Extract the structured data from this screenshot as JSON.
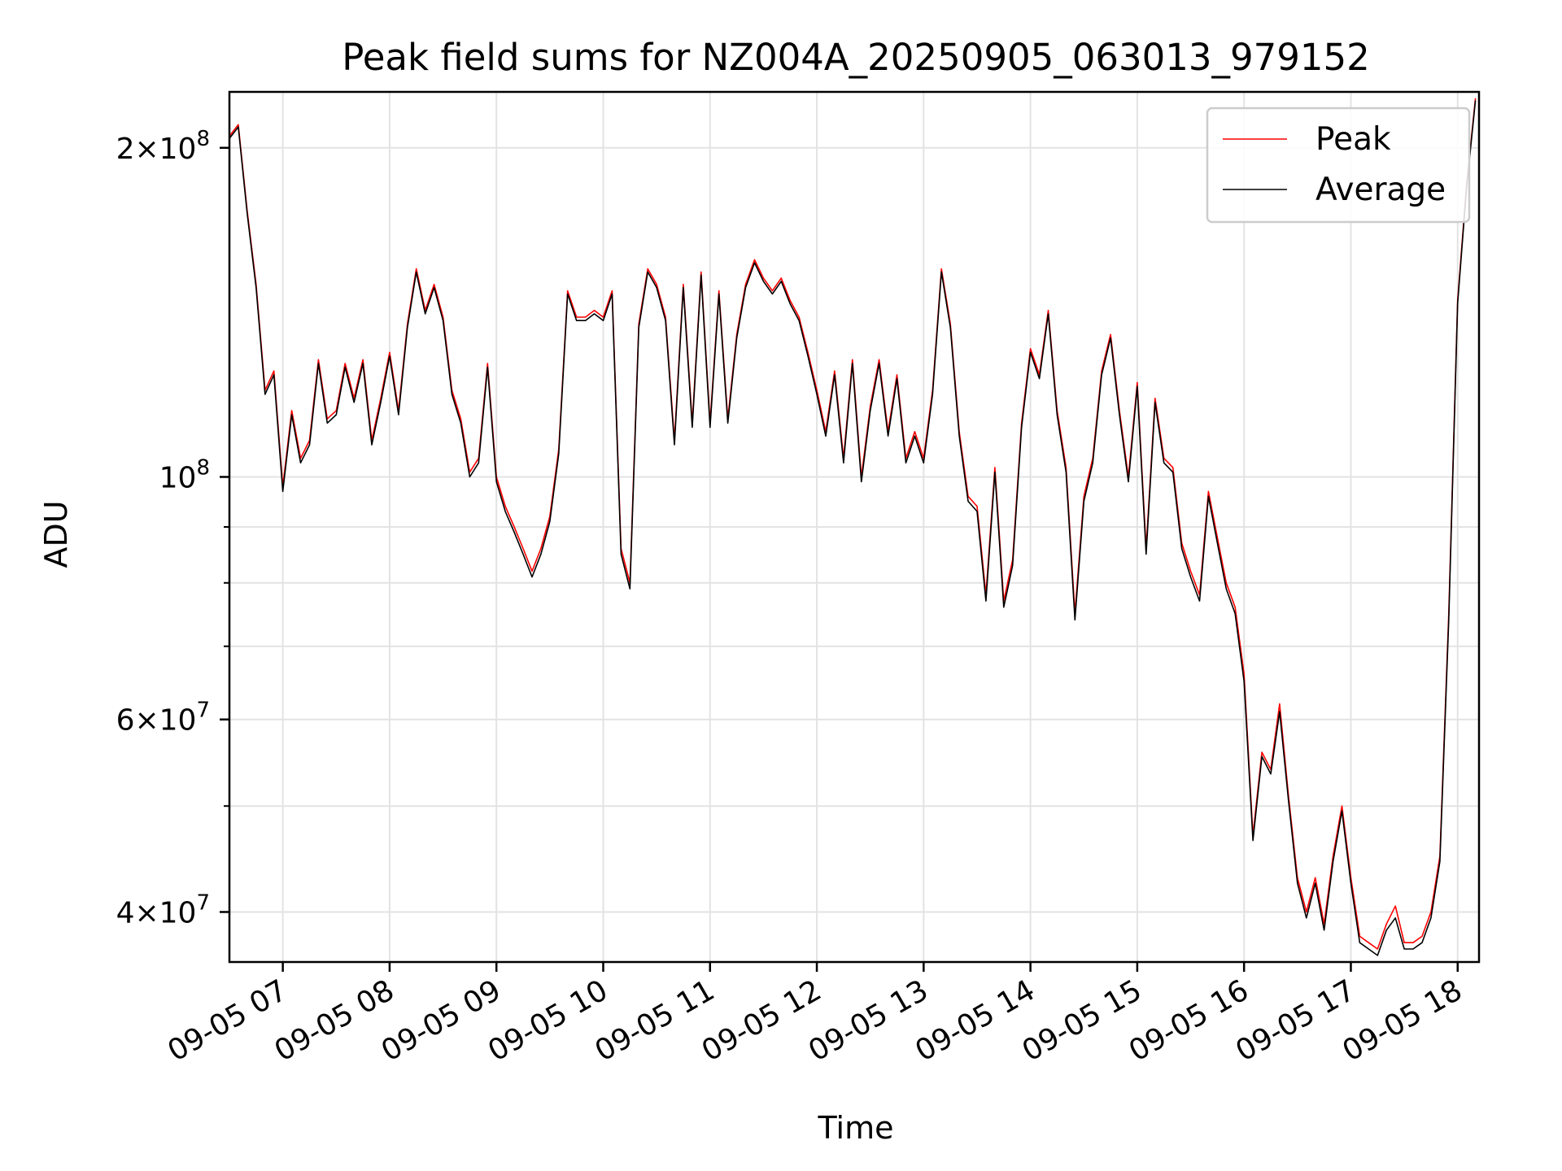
{
  "chart_data": {
    "type": "line",
    "title": "Peak field sums for NZ004A_20250905_063013_979152",
    "xlabel": "Time",
    "ylabel": "ADU",
    "yscale": "log",
    "ylim": [
      36000000,
      225000000
    ],
    "xlim": [
      "09-05 06:30",
      "09-05 18:12"
    ],
    "grid": true,
    "legend_position": "top-right",
    "x_ticks": [
      "09-05 07",
      "09-05 08",
      "09-05 09",
      "09-05 10",
      "09-05 11",
      "09-05 12",
      "09-05 13",
      "09-05 14",
      "09-05 15",
      "09-05 16",
      "09-05 17",
      "09-05 18"
    ],
    "y_ticks_major": [
      {
        "value": 200000000,
        "mantissa": "2",
        "exponent": "8"
      },
      {
        "value": 100000000,
        "mantissa": "",
        "exponent": "8"
      },
      {
        "value": 60000000,
        "mantissa": "6",
        "exponent": "7"
      },
      {
        "value": 40000000,
        "mantissa": "4",
        "exponent": "7"
      }
    ],
    "y_ticks_minor": [
      90000000,
      80000000,
      70000000,
      50000000
    ],
    "x": [
      "09-05 06:30",
      "09-05 06:35",
      "09-05 06:40",
      "09-05 06:45",
      "09-05 06:50",
      "09-05 06:55",
      "09-05 07:00",
      "09-05 07:05",
      "09-05 07:10",
      "09-05 07:15",
      "09-05 07:20",
      "09-05 07:25",
      "09-05 07:30",
      "09-05 07:35",
      "09-05 07:40",
      "09-05 07:45",
      "09-05 07:50",
      "09-05 07:55",
      "09-05 08:00",
      "09-05 08:05",
      "09-05 08:10",
      "09-05 08:15",
      "09-05 08:20",
      "09-05 08:25",
      "09-05 08:30",
      "09-05 08:35",
      "09-05 08:40",
      "09-05 08:45",
      "09-05 08:50",
      "09-05 08:55",
      "09-05 09:00",
      "09-05 09:05",
      "09-05 09:10",
      "09-05 09:15",
      "09-05 09:20",
      "09-05 09:25",
      "09-05 09:30",
      "09-05 09:35",
      "09-05 09:40",
      "09-05 09:45",
      "09-05 09:50",
      "09-05 09:55",
      "09-05 10:00",
      "09-05 10:05",
      "09-05 10:10",
      "09-05 10:15",
      "09-05 10:20",
      "09-05 10:25",
      "09-05 10:30",
      "09-05 10:35",
      "09-05 10:40",
      "09-05 10:45",
      "09-05 10:50",
      "09-05 10:55",
      "09-05 11:00",
      "09-05 11:05",
      "09-05 11:10",
      "09-05 11:15",
      "09-05 11:20",
      "09-05 11:25",
      "09-05 11:30",
      "09-05 11:35",
      "09-05 11:40",
      "09-05 11:45",
      "09-05 11:50",
      "09-05 11:55",
      "09-05 12:00",
      "09-05 12:05",
      "09-05 12:10",
      "09-05 12:15",
      "09-05 12:20",
      "09-05 12:25",
      "09-05 12:30",
      "09-05 12:35",
      "09-05 12:40",
      "09-05 12:45",
      "09-05 12:50",
      "09-05 12:55",
      "09-05 13:00",
      "09-05 13:05",
      "09-05 13:10",
      "09-05 13:15",
      "09-05 13:20",
      "09-05 13:25",
      "09-05 13:30",
      "09-05 13:35",
      "09-05 13:40",
      "09-05 13:45",
      "09-05 13:50",
      "09-05 13:55",
      "09-05 14:00",
      "09-05 14:05",
      "09-05 14:10",
      "09-05 14:15",
      "09-05 14:20",
      "09-05 14:25",
      "09-05 14:30",
      "09-05 14:35",
      "09-05 14:40",
      "09-05 14:45",
      "09-05 14:50",
      "09-05 14:55",
      "09-05 15:00",
      "09-05 15:05",
      "09-05 15:10",
      "09-05 15:15",
      "09-05 15:20",
      "09-05 15:25",
      "09-05 15:30",
      "09-05 15:35",
      "09-05 15:40",
      "09-05 15:45",
      "09-05 15:50",
      "09-05 15:55",
      "09-05 16:00",
      "09-05 16:05",
      "09-05 16:10",
      "09-05 16:15",
      "09-05 16:20",
      "09-05 16:25",
      "09-05 16:30",
      "09-05 16:35",
      "09-05 16:40",
      "09-05 16:45",
      "09-05 16:50",
      "09-05 16:55",
      "09-05 17:00",
      "09-05 17:05",
      "09-05 17:10",
      "09-05 17:15",
      "09-05 17:20",
      "09-05 17:25",
      "09-05 17:30",
      "09-05 17:35",
      "09-05 17:40",
      "09-05 17:45",
      "09-05 17:50",
      "09-05 17:55",
      "09-05 18:00",
      "09-05 18:05",
      "09-05 18:10"
    ],
    "series": [
      {
        "name": "Peak",
        "color": "#ff0000",
        "values": [
          205000000,
          210000000,
          175000000,
          150000000,
          120000000,
          125000000,
          98000000,
          115000000,
          104000000,
          108000000,
          128000000,
          113000000,
          115000000,
          127000000,
          118000000,
          128000000,
          108000000,
          118000000,
          130000000,
          115000000,
          138000000,
          155000000,
          142000000,
          150000000,
          140000000,
          120000000,
          113000000,
          101000000,
          104000000,
          127000000,
          100000000,
          94000000,
          90000000,
          86000000,
          82000000,
          86000000,
          92000000,
          106000000,
          148000000,
          140000000,
          140000000,
          142000000,
          140000000,
          148000000,
          86000000,
          80000000,
          138000000,
          155000000,
          150000000,
          140000000,
          108000000,
          150000000,
          112000000,
          154000000,
          112000000,
          148000000,
          113000000,
          135000000,
          150000000,
          158000000,
          152000000,
          148000000,
          152000000,
          145000000,
          140000000,
          130000000,
          120000000,
          110000000,
          125000000,
          104000000,
          128000000,
          100000000,
          116000000,
          128000000,
          110000000,
          124000000,
          104000000,
          110000000,
          104000000,
          120000000,
          155000000,
          138000000,
          110000000,
          96000000,
          94000000,
          78000000,
          102000000,
          77000000,
          84000000,
          112000000,
          131000000,
          124000000,
          142000000,
          115000000,
          102000000,
          75000000,
          96000000,
          104000000,
          125000000,
          135000000,
          115000000,
          100000000,
          122000000,
          86000000,
          118000000,
          104000000,
          102000000,
          87000000,
          82000000,
          78000000,
          97000000,
          88000000,
          80000000,
          76000000,
          66000000,
          47000000,
          56000000,
          54000000,
          62000000,
          51000000,
          43000000,
          40000000,
          43000000,
          39000000,
          45000000,
          50000000,
          43000000,
          38000000,
          37500000,
          37000000,
          39000000,
          40500000,
          37500000,
          37500000,
          38000000,
          40000000,
          45000000,
          75000000,
          145000000,
          185000000,
          222000000
        ]
      },
      {
        "name": "Average",
        "color": "#000000",
        "values": [
          204000000,
          209000000,
          174000000,
          149000000,
          119000000,
          124000000,
          97000000,
          114000000,
          103000000,
          107000000,
          127000000,
          112000000,
          114000000,
          126000000,
          117000000,
          127000000,
          107000000,
          117000000,
          129000000,
          114000000,
          137000000,
          154000000,
          141000000,
          149000000,
          139000000,
          119000000,
          112000000,
          100000000,
          103000000,
          126000000,
          99000000,
          93000000,
          89000000,
          85000000,
          81000000,
          85000000,
          91000000,
          105000000,
          147000000,
          139000000,
          139000000,
          141000000,
          139000000,
          147000000,
          85000000,
          79000000,
          137000000,
          154000000,
          149000000,
          139000000,
          107000000,
          149000000,
          111000000,
          153000000,
          111000000,
          147000000,
          112000000,
          134000000,
          149000000,
          157000000,
          151000000,
          147000000,
          151000000,
          144000000,
          139000000,
          129000000,
          119000000,
          109000000,
          124000000,
          103000000,
          127000000,
          99000000,
          115000000,
          127000000,
          109000000,
          123000000,
          103000000,
          109000000,
          103000000,
          119000000,
          154000000,
          137000000,
          109000000,
          95000000,
          93000000,
          77000000,
          101000000,
          76000000,
          83000000,
          111000000,
          130000000,
          123000000,
          141000000,
          114000000,
          101000000,
          74000000,
          95000000,
          103000000,
          124000000,
          134000000,
          114000000,
          99000000,
          121000000,
          85000000,
          117000000,
          103000000,
          101000000,
          86000000,
          81000000,
          77000000,
          96000000,
          87000000,
          79000000,
          75000000,
          65000000,
          46500000,
          55500000,
          53500000,
          61000000,
          50500000,
          42500000,
          39500000,
          42500000,
          38500000,
          44500000,
          49500000,
          42500000,
          37500000,
          37000000,
          36500000,
          38500000,
          39500000,
          37000000,
          37000000,
          37500000,
          39500000,
          44500000,
          74000000,
          144000000,
          184000000,
          221000000
        ]
      }
    ]
  }
}
